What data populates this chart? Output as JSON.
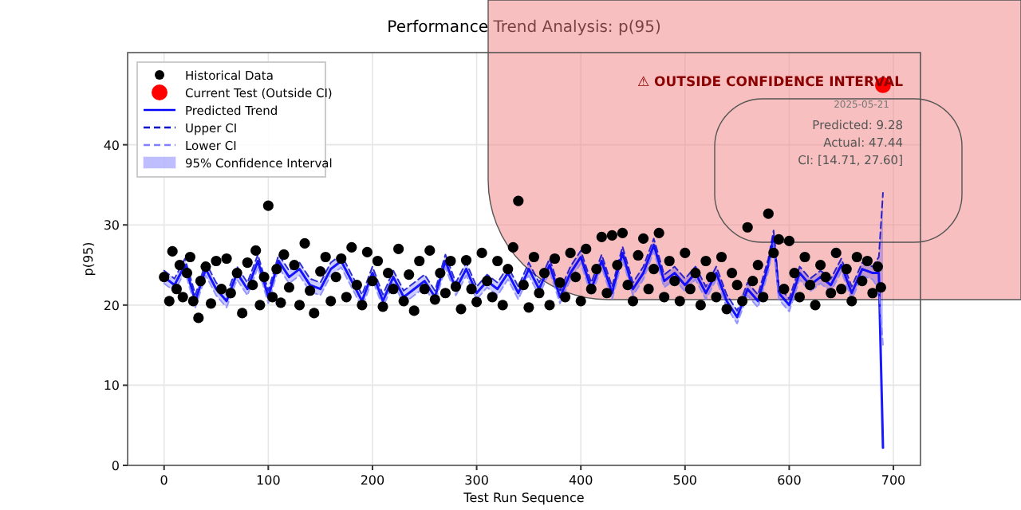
{
  "chart_data": {
    "type": "scatter",
    "title": "Performance Trend Analysis: p(95)",
    "xlabel": "Test Run Sequence",
    "ylabel": "p(95)",
    "xlim": [
      -35,
      726
    ],
    "ylim": [
      0,
      51.5
    ],
    "xticks": [
      0,
      100,
      200,
      300,
      400,
      500,
      600,
      700
    ],
    "yticks": [
      0,
      10,
      20,
      30,
      40
    ],
    "grid": true,
    "legend": "top left",
    "series": [
      {
        "name": "Historical Data",
        "color": "#000000",
        "marker": "circle",
        "x": [
          0,
          5,
          8,
          12,
          15,
          18,
          22,
          25,
          28,
          33,
          35,
          40,
          45,
          50,
          55,
          60,
          64,
          70,
          75,
          80,
          85,
          88,
          92,
          96,
          100,
          104,
          108,
          112,
          115,
          120,
          125,
          130,
          135,
          140,
          144,
          150,
          155,
          160,
          165,
          170,
          175,
          180,
          185,
          190,
          195,
          200,
          205,
          210,
          215,
          220,
          225,
          230,
          235,
          240,
          245,
          250,
          255,
          260,
          265,
          270,
          275,
          280,
          285,
          290,
          295,
          300,
          305,
          310,
          315,
          320,
          325,
          330,
          335,
          340,
          345,
          350,
          355,
          360,
          365,
          370,
          375,
          380,
          385,
          390,
          395,
          400,
          405,
          410,
          415,
          420,
          425,
          430,
          435,
          440,
          445,
          450,
          455,
          460,
          465,
          470,
          475,
          480,
          485,
          490,
          495,
          500,
          505,
          510,
          515,
          520,
          525,
          530,
          535,
          540,
          545,
          550,
          555,
          560,
          565,
          570,
          575,
          580,
          585,
          590,
          595,
          600,
          605,
          610,
          615,
          620,
          625,
          630,
          635,
          640,
          645,
          650,
          655,
          660,
          665,
          670,
          675,
          680,
          685,
          688
        ],
        "values": [
          23.5,
          20.5,
          26.7,
          22,
          25,
          21,
          24,
          26,
          20.5,
          18.4,
          23,
          24.8,
          20.2,
          25.5,
          22,
          25.8,
          21.5,
          24,
          19,
          25.3,
          22.5,
          26.8,
          20,
          23.5,
          32.4,
          21,
          24.5,
          20.3,
          26.3,
          22.2,
          25,
          20,
          27.7,
          21.8,
          19,
          24.2,
          26,
          20.5,
          23.5,
          25.8,
          21,
          27.2,
          22.5,
          20,
          26.6,
          23,
          25.5,
          19.8,
          24,
          22,
          27,
          20.5,
          23.8,
          19.3,
          25.5,
          22,
          26.8,
          20.7,
          24,
          21.5,
          25.5,
          22.3,
          19.5,
          25.6,
          22,
          20.4,
          26.5,
          23,
          21,
          25.5,
          20,
          24.5,
          27.2,
          33,
          22.5,
          19.7,
          26,
          21.5,
          24,
          20,
          25.8,
          22.8,
          21,
          26.5,
          23.5,
          20.5,
          27,
          22,
          24.5,
          28.5,
          21.5,
          28.7,
          25,
          29,
          22.5,
          20.5,
          26.2,
          28.3,
          22,
          24.5,
          29,
          21,
          25.5,
          23,
          20.5,
          26.5,
          22,
          24,
          20,
          25.5,
          23.5,
          21,
          26,
          19.5,
          24,
          22.5,
          20.5,
          29.7,
          23,
          25,
          21,
          31.4,
          26.5,
          28.2,
          22,
          28,
          24,
          21,
          26,
          22.5,
          20,
          25,
          23.5,
          21.5,
          26.5,
          22,
          24.5,
          20.5,
          26,
          23,
          25.5,
          21.5,
          24.8,
          22.2
        ]
      },
      {
        "name": "Current Test (Outside CI)",
        "color": "#ff0000",
        "marker": "circle",
        "x": [
          690
        ],
        "values": [
          47.44
        ]
      },
      {
        "name": "Predicted Trend",
        "type": "line",
        "color": "#0000ff",
        "line_style": "solid",
        "x": [
          0,
          10,
          20,
          30,
          40,
          50,
          60,
          70,
          80,
          90,
          100,
          110,
          120,
          130,
          140,
          150,
          160,
          170,
          180,
          190,
          200,
          210,
          220,
          230,
          240,
          250,
          260,
          270,
          280,
          290,
          300,
          310,
          320,
          330,
          340,
          350,
          360,
          370,
          380,
          390,
          400,
          410,
          420,
          430,
          440,
          450,
          460,
          470,
          480,
          490,
          500,
          510,
          520,
          530,
          540,
          550,
          560,
          570,
          580,
          585,
          590,
          600,
          610,
          620,
          630,
          640,
          650,
          660,
          670,
          680,
          686,
          690
        ],
        "values": [
          23.5,
          22.5,
          25,
          20.5,
          24.5,
          22,
          20.5,
          24,
          22,
          25.5,
          21,
          25.5,
          23.5,
          24.5,
          22.5,
          22,
          24.5,
          25.5,
          23,
          20.5,
          24,
          20.5,
          23.5,
          21,
          22,
          23,
          21,
          25.5,
          22,
          24.5,
          21.5,
          23,
          22,
          24,
          21.5,
          24.5,
          22,
          25,
          21,
          24,
          26,
          22,
          25.5,
          21.5,
          26.5,
          22,
          24,
          27.5,
          23,
          24,
          22.5,
          24,
          21.5,
          24,
          20.5,
          18.5,
          22,
          20.5,
          25,
          28.5,
          21.5,
          20,
          24,
          22.5,
          23.5,
          22.5,
          25,
          21.5,
          24.5,
          24,
          24,
          2.2
        ],
        "upper": [
          24.3,
          23.3,
          25.8,
          21.3,
          25.3,
          22.8,
          21.3,
          24.8,
          22.8,
          26.3,
          21.8,
          26.3,
          24.3,
          25.3,
          23.3,
          22.8,
          25.3,
          26.3,
          23.8,
          21.3,
          24.8,
          21.3,
          24.3,
          21.8,
          22.8,
          23.8,
          21.8,
          26.3,
          22.8,
          25.3,
          22.3,
          23.8,
          22.8,
          24.8,
          22.3,
          25.3,
          22.8,
          25.8,
          21.8,
          24.8,
          26.8,
          22.8,
          26.3,
          22.3,
          27.3,
          22.8,
          24.8,
          28.3,
          23.8,
          24.8,
          23.3,
          24.8,
          22.3,
          24.8,
          21.3,
          19.3,
          22.8,
          21.3,
          25.8,
          29.3,
          22.3,
          20.8,
          24.8,
          23.3,
          24.3,
          23.3,
          25.8,
          22.3,
          25.3,
          24.8,
          26,
          34
        ],
        "lower": [
          22.7,
          21.7,
          24.2,
          19.7,
          23.7,
          21.2,
          19.7,
          23.2,
          21.2,
          24.7,
          20.2,
          24.7,
          22.7,
          23.7,
          21.7,
          21.2,
          23.7,
          24.7,
          22.2,
          19.7,
          23.2,
          19.7,
          22.7,
          20.2,
          21.2,
          22.2,
          20.2,
          24.7,
          21.2,
          23.7,
          20.7,
          22.2,
          21.2,
          23.2,
          20.7,
          23.7,
          21.2,
          24.2,
          20.2,
          23.2,
          25.2,
          21.2,
          24.7,
          20.7,
          25.7,
          21.2,
          23.2,
          26.7,
          22.2,
          23.2,
          21.7,
          23.2,
          20.7,
          23.2,
          19.7,
          17.7,
          21.2,
          19.7,
          24.2,
          27.7,
          20.7,
          19.2,
          23.2,
          21.7,
          22.7,
          21.7,
          24.2,
          20.7,
          23.7,
          23.2,
          22,
          15
        ]
      },
      {
        "name": "Upper CI",
        "type": "line",
        "color": "#0000cc",
        "line_style": "dashed",
        "x": [
          0,
          10,
          20,
          30,
          40,
          50,
          60,
          70,
          80,
          90,
          100,
          110,
          120,
          130,
          140,
          150,
          160,
          170,
          180,
          190,
          200,
          210,
          220,
          230,
          240,
          250,
          260,
          270,
          280,
          290,
          300,
          310,
          320,
          330,
          340,
          350,
          360,
          370,
          380,
          390,
          400,
          410,
          420,
          430,
          440,
          450,
          460,
          470,
          480,
          490,
          500,
          510,
          520,
          530,
          540,
          550,
          560,
          570,
          580,
          585,
          590,
          600,
          610,
          620,
          630,
          640,
          650,
          660,
          670,
          680,
          686,
          690
        ],
        "values": [
          24.3,
          23.3,
          25.8,
          21.3,
          25.3,
          22.8,
          21.3,
          24.8,
          22.8,
          26.3,
          21.8,
          26.3,
          24.3,
          25.3,
          23.3,
          22.8,
          25.3,
          26.3,
          23.8,
          21.3,
          24.8,
          21.3,
          24.3,
          21.8,
          22.8,
          23.8,
          21.8,
          26.3,
          22.8,
          25.3,
          22.3,
          23.8,
          22.8,
          24.8,
          22.3,
          25.3,
          22.8,
          25.8,
          21.8,
          24.8,
          26.8,
          22.8,
          26.3,
          22.3,
          27.3,
          22.8,
          24.8,
          28.3,
          23.8,
          24.8,
          23.3,
          24.8,
          22.3,
          24.8,
          21.3,
          19.3,
          22.8,
          21.3,
          25.8,
          29.3,
          22.3,
          20.8,
          24.8,
          23.3,
          24.3,
          23.3,
          25.8,
          22.3,
          25.3,
          24.8,
          26,
          34
        ]
      },
      {
        "name": "Lower CI",
        "type": "line",
        "color": "#8080ff",
        "line_style": "dashed",
        "x": [
          0,
          10,
          20,
          30,
          40,
          50,
          60,
          70,
          80,
          90,
          100,
          110,
          120,
          130,
          140,
          150,
          160,
          170,
          180,
          190,
          200,
          210,
          220,
          230,
          240,
          250,
          260,
          270,
          280,
          290,
          300,
          310,
          320,
          330,
          340,
          350,
          360,
          370,
          380,
          390,
          400,
          410,
          420,
          430,
          440,
          450,
          460,
          470,
          480,
          490,
          500,
          510,
          520,
          530,
          540,
          550,
          560,
          570,
          580,
          585,
          590,
          600,
          610,
          620,
          630,
          640,
          650,
          660,
          670,
          680,
          686,
          690
        ],
        "values": [
          22.7,
          21.7,
          24.2,
          19.7,
          23.7,
          21.2,
          19.7,
          23.2,
          21.2,
          24.7,
          20.2,
          24.7,
          22.7,
          23.7,
          21.7,
          21.2,
          23.7,
          24.7,
          22.2,
          19.7,
          23.2,
          19.7,
          22.7,
          20.2,
          21.2,
          22.2,
          20.2,
          24.7,
          21.2,
          23.7,
          20.7,
          22.2,
          21.2,
          23.2,
          20.7,
          23.7,
          21.2,
          24.2,
          20.2,
          23.2,
          25.2,
          21.2,
          24.7,
          20.7,
          25.7,
          21.2,
          23.2,
          26.7,
          22.2,
          23.2,
          21.7,
          23.2,
          20.7,
          23.2,
          19.7,
          17.7,
          21.2,
          19.7,
          24.2,
          27.7,
          20.7,
          19.2,
          23.2,
          21.7,
          22.7,
          21.7,
          24.2,
          20.7,
          23.7,
          23.2,
          22,
          15
        ]
      },
      {
        "name": "95% Confidence Interval",
        "type": "area",
        "color": "#0000ff"
      }
    ],
    "annotations": [
      "⚠ OUTSIDE CONFIDENCE INTERVAL",
      "Predicted: 9.28",
      "Actual: 47.44",
      "CI: [14.71, 27.60]",
      {
        "text": "2025-05-21",
        "x": 690,
        "y": 47.44
      }
    ]
  }
}
